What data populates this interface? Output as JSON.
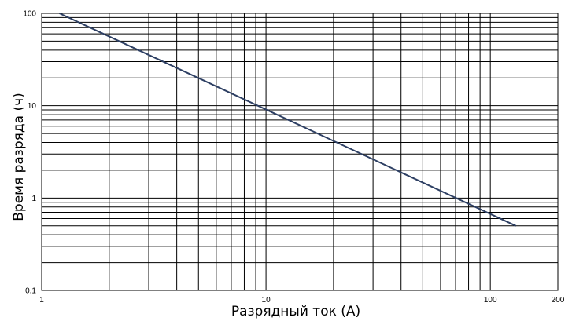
{
  "chart_data": {
    "type": "line",
    "title": "",
    "xlabel": "Разрядный ток (A)",
    "ylabel": "Время разряда (ч)",
    "x_scale": "log",
    "y_scale": "log",
    "xlim": [
      1,
      200
    ],
    "ylim": [
      0.1,
      100
    ],
    "grid": true,
    "x_ticks": [
      {
        "value": 1,
        "label": "1"
      },
      {
        "value": 10,
        "label": "10"
      },
      {
        "value": 100,
        "label": "100"
      },
      {
        "value": 200,
        "label": "200"
      }
    ],
    "y_ticks": [
      {
        "value": 100,
        "label": "100"
      },
      {
        "value": 10,
        "label": "10"
      },
      {
        "value": 1,
        "label": "1"
      },
      {
        "value": 0.1,
        "label": "0.1"
      }
    ],
    "series": [
      {
        "color": "#2d3f63",
        "x": [
          1.2,
          130
        ],
        "y": [
          100,
          0.5
        ]
      }
    ]
  }
}
